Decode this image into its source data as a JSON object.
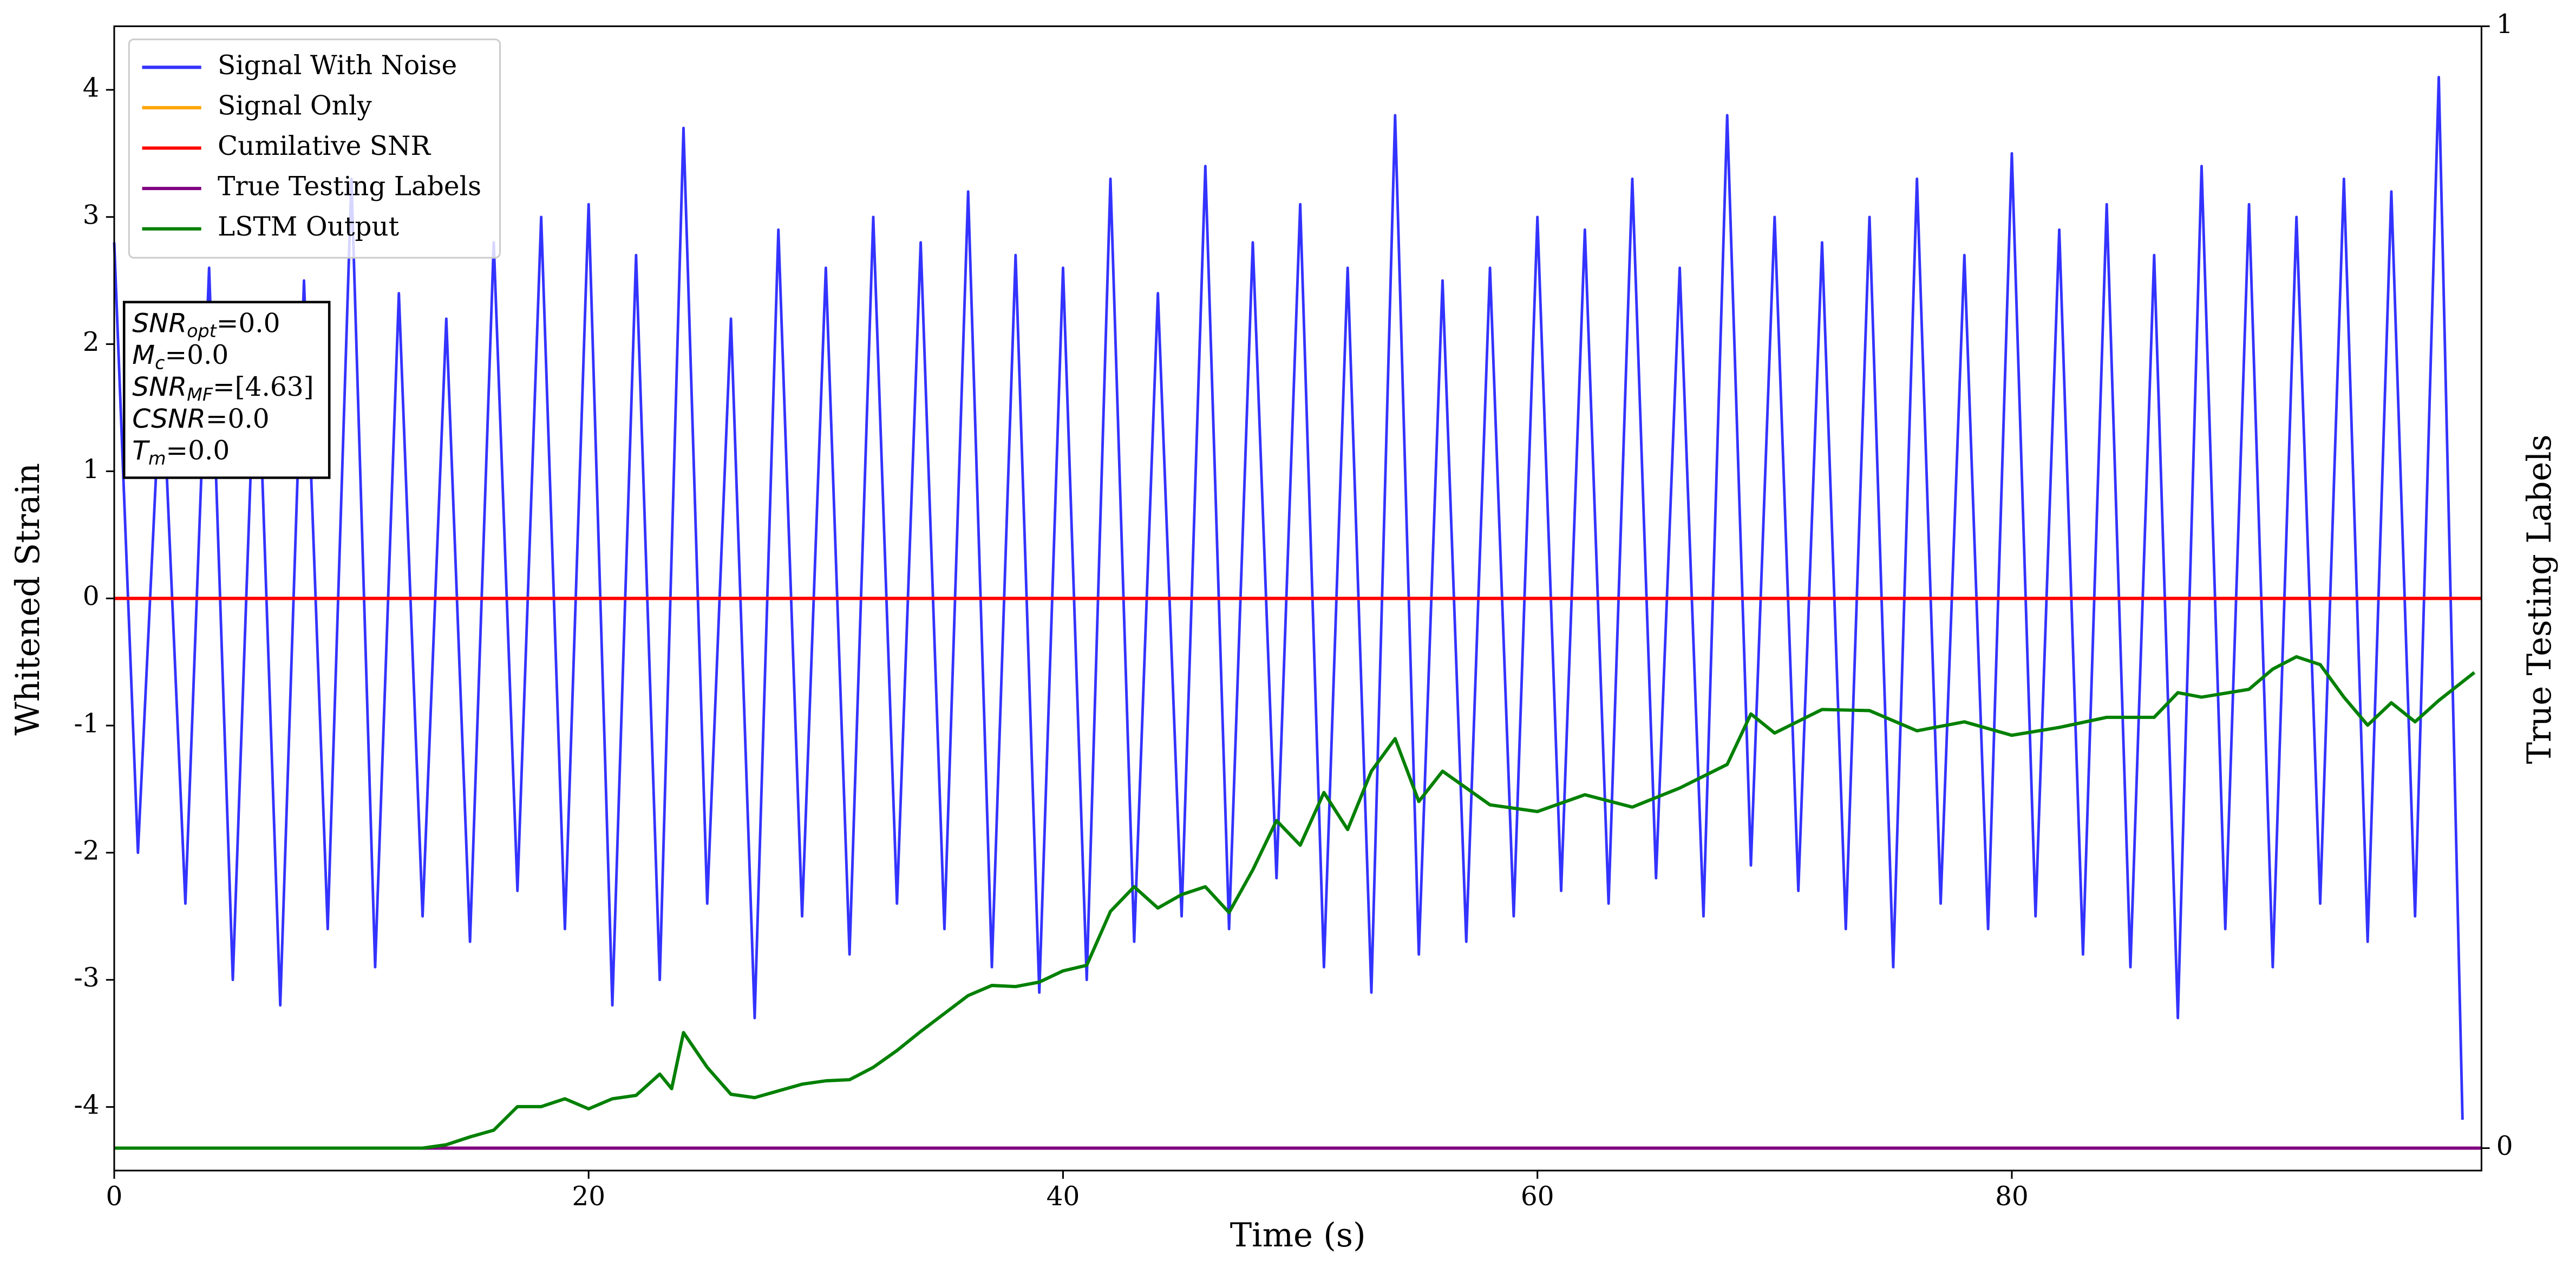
{
  "chart_data": {
    "type": "line",
    "xlabel": "Time (s)",
    "ylabel": "Whitened Strain",
    "y2label": "True Testing Labels",
    "xlim": [
      0,
      99.8
    ],
    "xticks": [
      0,
      20,
      40,
      60,
      80
    ],
    "ylim": [
      -4.5,
      4.5
    ],
    "yticks": [
      -4,
      -3,
      -2,
      -1,
      0,
      1,
      2,
      3,
      4
    ],
    "y2lim": [
      -0.02,
      1.0
    ],
    "y2ticks": [
      0,
      1
    ],
    "legend": "upper left",
    "series": [
      {
        "name": "Signal With Noise",
        "color": "#3333ff",
        "x": [
          0,
          1,
          2,
          3,
          4,
          5,
          6,
          7,
          8,
          9,
          10,
          11,
          12,
          13,
          14,
          15,
          16,
          17,
          18,
          19,
          20,
          21,
          22,
          23,
          24,
          25,
          26,
          27,
          28,
          29,
          30,
          31,
          32,
          33,
          34,
          35,
          36,
          37,
          38,
          39,
          40,
          41,
          42,
          43,
          44,
          45,
          46,
          47,
          48,
          49,
          50,
          51,
          52,
          53,
          54,
          55,
          56,
          57,
          58,
          59,
          60,
          61,
          62,
          63,
          64,
          65,
          66,
          67,
          68,
          69,
          70,
          71,
          72,
          73,
          74,
          75,
          76,
          77,
          78,
          79,
          80,
          81,
          82,
          83,
          84,
          85,
          86,
          87,
          88,
          89,
          90,
          91,
          92,
          93,
          94,
          95,
          96,
          97,
          98,
          99
        ],
        "values": [
          2.8,
          -2.0,
          1.9,
          -2.4,
          2.6,
          -3.0,
          2.3,
          -3.2,
          2.5,
          -2.6,
          3.3,
          -2.9,
          2.4,
          -2.5,
          2.2,
          -2.7,
          2.8,
          -2.3,
          3.0,
          -2.6,
          3.1,
          -3.2,
          2.7,
          -3.0,
          3.7,
          -2.4,
          2.2,
          -3.3,
          2.9,
          -2.5,
          2.6,
          -2.8,
          3.0,
          -2.4,
          2.8,
          -2.6,
          3.2,
          -2.9,
          2.7,
          -3.1,
          2.6,
          -3.0,
          3.3,
          -2.7,
          2.4,
          -2.5,
          3.4,
          -2.6,
          2.8,
          -2.2,
          3.1,
          -2.9,
          2.6,
          -3.1,
          3.8,
          -2.8,
          2.5,
          -2.7,
          2.6,
          -2.5,
          3.0,
          -2.3,
          2.9,
          -2.4,
          3.3,
          -2.2,
          2.6,
          -2.5,
          3.8,
          -2.1,
          3.0,
          -2.3,
          2.8,
          -2.6,
          3.0,
          -2.9,
          3.3,
          -2.4,
          2.7,
          -2.6,
          3.5,
          -2.5,
          2.9,
          -2.8,
          3.1,
          -2.9,
          2.7,
          -3.3,
          3.4,
          -2.6,
          3.1,
          -2.9,
          3.0,
          -2.4,
          3.3,
          -2.7,
          3.2,
          -2.5,
          4.1,
          -4.1
        ]
      },
      {
        "name": "Signal Only",
        "color": "orange",
        "x": [
          0,
          99.8
        ],
        "values": [
          0,
          0
        ]
      },
      {
        "name": "Cumilative SNR",
        "color": "red",
        "x": [
          0,
          99.8
        ],
        "values": [
          0,
          0
        ]
      },
      {
        "name": "True Testing Labels",
        "color": "purple",
        "axis": "y2",
        "x": [
          0,
          99.8
        ],
        "values": [
          0,
          0
        ]
      },
      {
        "name": "LSTM Output",
        "color": "green",
        "axis": "y2",
        "x": [
          0,
          13,
          14,
          15,
          16,
          17,
          18,
          19,
          20,
          21,
          22,
          23,
          23.5,
          24,
          25,
          26,
          27,
          28,
          29,
          30,
          31,
          32,
          33,
          34,
          35,
          36,
          37,
          38,
          39,
          40,
          41,
          42,
          43,
          44,
          45,
          46,
          47,
          48,
          49,
          50,
          51,
          52,
          53,
          54,
          55,
          56,
          57,
          58,
          60,
          62,
          64,
          66,
          68,
          69,
          70,
          72,
          74,
          76,
          78,
          80,
          82,
          84,
          86,
          87,
          88,
          90,
          91,
          92,
          93,
          94,
          95,
          96,
          97,
          98,
          99.5
        ],
        "values": [
          0,
          0,
          0.003,
          0.01,
          0.016,
          0.037,
          0.037,
          0.044,
          0.035,
          0.044,
          0.047,
          0.066,
          0.053,
          0.103,
          0.072,
          0.048,
          0.045,
          0.051,
          0.057,
          0.06,
          0.061,
          0.072,
          0.087,
          0.104,
          0.12,
          0.136,
          0.145,
          0.144,
          0.148,
          0.158,
          0.163,
          0.211,
          0.233,
          0.214,
          0.226,
          0.233,
          0.21,
          0.248,
          0.292,
          0.27,
          0.317,
          0.284,
          0.336,
          0.365,
          0.309,
          0.336,
          0.321,
          0.306,
          0.3,
          0.315,
          0.304,
          0.321,
          0.342,
          0.387,
          0.37,
          0.391,
          0.39,
          0.372,
          0.38,
          0.368,
          0.375,
          0.384,
          0.384,
          0.406,
          0.402,
          0.409,
          0.427,
          0.438,
          0.431,
          0.402,
          0.377,
          0.397,
          0.38,
          0.399,
          0.424
        ]
      }
    ],
    "annotation": [
      {
        "text": "SNR",
        "sub": "opt",
        "value": "=0.0"
      },
      {
        "text": "M",
        "sub": "c",
        "value": "=0.0"
      },
      {
        "text": "SNR",
        "sub": "MF",
        "value": "=[4.63]"
      },
      {
        "text": "CSNR",
        "value": "=0.0"
      },
      {
        "text": "T",
        "sub": "m",
        "value": "=0.0"
      }
    ]
  }
}
